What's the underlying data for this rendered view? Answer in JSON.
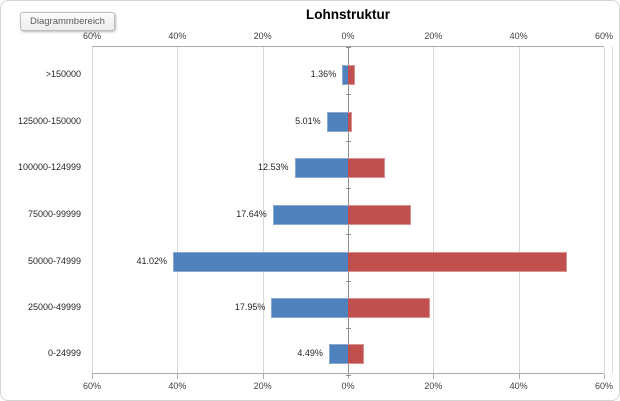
{
  "tooltip": {
    "label": "Diagrammbereich"
  },
  "chart_data": {
    "type": "bar",
    "subtype": "tornado-bidirectional-horizontal",
    "title": "Lohnstruktur",
    "categories": [
      ">150000",
      "125000-150000",
      "100000-124999",
      "75000-99999",
      "50000-74999",
      "25000-49999",
      "0-24999"
    ],
    "series": [
      {
        "name": "left-series-blue",
        "direction": "left",
        "color": "#4F81BD",
        "values": [
          1.36,
          5.01,
          12.53,
          17.64,
          41.02,
          17.95,
          4.49
        ],
        "data_labels": [
          "1.36%",
          "5.01%",
          "12.53%",
          "17.64%",
          "41.02%",
          "17.95%",
          "4.49%"
        ],
        "labels_visible": true
      },
      {
        "name": "right-series-red",
        "direction": "right",
        "color": "#C0504D",
        "values": [
          1.6,
          0.9,
          8.7,
          14.8,
          51.3,
          19.2,
          3.8
        ],
        "values_note": "estimated from bar lengths; no data labels shown",
        "labels_visible": false
      }
    ],
    "x_axis": {
      "top_ticks": [
        "60%",
        "40%",
        "20%",
        "0%",
        "20%",
        "40%",
        "60%"
      ],
      "bottom_ticks": [
        "60%",
        "40%",
        "20%",
        "0%",
        "20%",
        "40%",
        "60%"
      ],
      "max_percent_each_side": 60,
      "tick_step_percent": 20,
      "gridlines": true,
      "legend": "none"
    },
    "colors": {
      "blue_series": "#4F81BD",
      "red_series": "#C0504D",
      "gridline": "#D9D9D9",
      "axis_line": "#ABABAB",
      "category_axis_line": "#8F8F8F"
    }
  }
}
